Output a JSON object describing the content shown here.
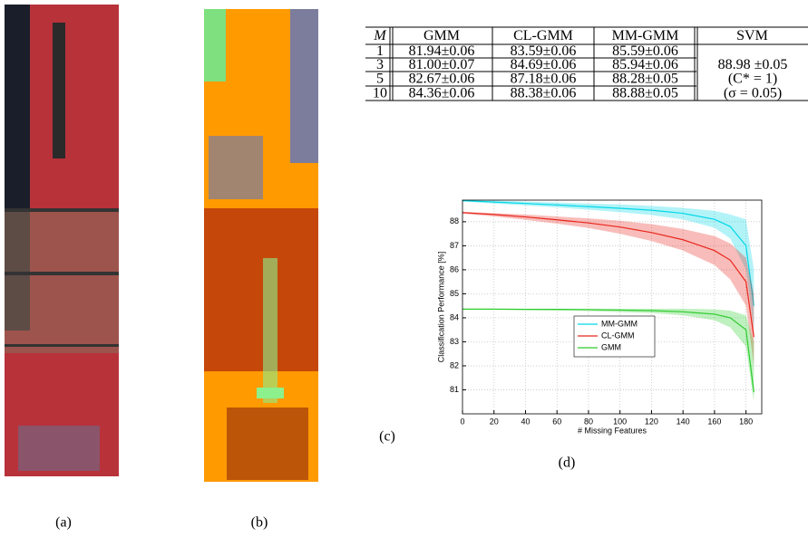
{
  "panels": {
    "a": "(a)",
    "b": "(b)",
    "c": "(c)",
    "d": "(d)"
  },
  "table": {
    "header": [
      "M",
      "GMM",
      "CL-GMM",
      "MM-GMM",
      "SVM"
    ],
    "rows": [
      [
        "1",
        "81.94±0.06",
        "83.59±0.06",
        "85.59±0.06"
      ],
      [
        "3",
        "81.00±0.07",
        "84.69±0.06",
        "85.94±0.06"
      ],
      [
        "5",
        "82.67±0.06",
        "87.18±0.06",
        "88.28±0.05"
      ],
      [
        "10",
        "84.36±0.06",
        "88.38±0.06",
        "88.88±0.05"
      ]
    ],
    "svm_notes": [
      "88.98 ±0.05",
      "(C* = 1)",
      "(σ = 0.05)"
    ]
  },
  "chart_data": {
    "type": "line",
    "y_label": "Classification Performance [%]",
    "x_label": "# Missing Features",
    "x": [
      0,
      20,
      40,
      60,
      80,
      100,
      120,
      140,
      160,
      170,
      180,
      185
    ],
    "xlim": [
      0,
      190
    ],
    "ylim": [
      80,
      88.9
    ],
    "xticks": [
      0,
      20,
      40,
      60,
      80,
      100,
      120,
      140,
      160,
      180
    ],
    "yticks": [
      81,
      82,
      83,
      84,
      85,
      86,
      87,
      88
    ],
    "grid": true,
    "legend": "center",
    "series": [
      {
        "name": "MM-GMM",
        "color": "#00d8e8",
        "values": [
          88.88,
          88.82,
          88.76,
          88.7,
          88.63,
          88.56,
          88.48,
          88.35,
          88.1,
          87.8,
          87.0,
          84.5
        ],
        "upper": [
          88.9,
          88.88,
          88.84,
          88.8,
          88.76,
          88.72,
          88.66,
          88.58,
          88.45,
          88.3,
          88.1,
          86.0
        ],
        "lower": [
          88.84,
          88.76,
          88.68,
          88.6,
          88.5,
          88.4,
          88.28,
          88.1,
          87.75,
          87.3,
          86.0,
          83.5
        ]
      },
      {
        "name": "CL-GMM",
        "color": "#e8261c",
        "values": [
          88.38,
          88.3,
          88.2,
          88.08,
          87.95,
          87.78,
          87.55,
          87.25,
          86.8,
          86.4,
          85.5,
          83.2
        ],
        "upper": [
          88.42,
          88.36,
          88.3,
          88.22,
          88.14,
          88.04,
          87.9,
          87.7,
          87.4,
          87.1,
          86.5,
          85.0
        ],
        "lower": [
          88.34,
          88.22,
          88.08,
          87.92,
          87.74,
          87.5,
          87.2,
          86.8,
          86.2,
          85.6,
          84.5,
          82.0
        ]
      },
      {
        "name": "GMM",
        "color": "#2ccc2c",
        "values": [
          84.36,
          84.36,
          84.35,
          84.35,
          84.34,
          84.32,
          84.3,
          84.25,
          84.15,
          84.0,
          83.5,
          80.9
        ],
        "upper": [
          84.38,
          84.38,
          84.38,
          84.38,
          84.38,
          84.38,
          84.38,
          84.38,
          84.35,
          84.3,
          84.1,
          83.0
        ],
        "lower": [
          84.34,
          84.34,
          84.32,
          84.3,
          84.28,
          84.24,
          84.2,
          84.1,
          83.9,
          83.6,
          82.8,
          80.5
        ]
      }
    ]
  }
}
